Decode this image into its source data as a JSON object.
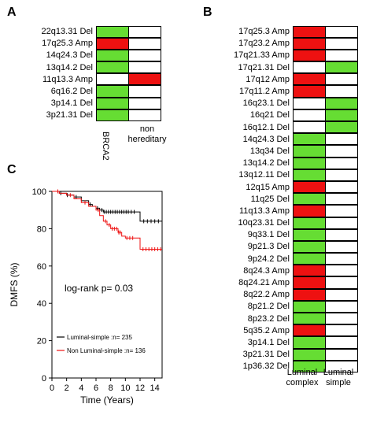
{
  "panels": {
    "a": "A",
    "b": "B",
    "c": "C"
  },
  "colors": {
    "green": "#66dd33",
    "red": "#ee1111",
    "white": "#ffffff",
    "black": "#000000",
    "red_line": "#ee1111"
  },
  "panel_a": {
    "columns": [
      "BRCA2",
      "non hereditary"
    ],
    "rows": [
      {
        "label": "22q13.31 Del",
        "cells": [
          "green",
          "white"
        ]
      },
      {
        "label": "17q25.3 Amp",
        "cells": [
          "red",
          "white"
        ]
      },
      {
        "label": "14q24.3 Del",
        "cells": [
          "green",
          "white"
        ]
      },
      {
        "label": "13q14.2 Del",
        "cells": [
          "green",
          "white"
        ]
      },
      {
        "label": "11q13.3 Amp",
        "cells": [
          "white",
          "red"
        ]
      },
      {
        "label": "6q16.2 Del",
        "cells": [
          "green",
          "white"
        ]
      },
      {
        "label": "3p14.1 Del",
        "cells": [
          "green",
          "white"
        ]
      },
      {
        "label": "3p21.31 Del",
        "cells": [
          "green",
          "white"
        ]
      }
    ]
  },
  "panel_b": {
    "columns": [
      "Luminal complex",
      "Luminal simple"
    ],
    "rows": [
      {
        "label": "17q25.3 Amp",
        "cells": [
          "red",
          "white"
        ]
      },
      {
        "label": "17q23.2 Amp",
        "cells": [
          "red",
          "white"
        ]
      },
      {
        "label": "17q21.33 Amp",
        "cells": [
          "red",
          "white"
        ]
      },
      {
        "label": "17q21.31 Del",
        "cells": [
          "white",
          "green"
        ]
      },
      {
        "label": "17q12 Amp",
        "cells": [
          "red",
          "white"
        ]
      },
      {
        "label": "17q11.2 Amp",
        "cells": [
          "red",
          "white"
        ]
      },
      {
        "label": "16q23.1 Del",
        "cells": [
          "white",
          "green"
        ]
      },
      {
        "label": "16q21 Del",
        "cells": [
          "white",
          "green"
        ]
      },
      {
        "label": "16q12.1 Del",
        "cells": [
          "white",
          "green"
        ]
      },
      {
        "label": "14q24.3 Del",
        "cells": [
          "green",
          "white"
        ]
      },
      {
        "label": "13q34 Del",
        "cells": [
          "green",
          "white"
        ]
      },
      {
        "label": "13q14.2 Del",
        "cells": [
          "green",
          "white"
        ]
      },
      {
        "label": "13q12.11 Del",
        "cells": [
          "green",
          "white"
        ]
      },
      {
        "label": "12q15 Amp",
        "cells": [
          "red",
          "white"
        ]
      },
      {
        "label": "11q25 Del",
        "cells": [
          "green",
          "white"
        ]
      },
      {
        "label": "11q13.3 Amp",
        "cells": [
          "red",
          "white"
        ]
      },
      {
        "label": "10q23.31 Del",
        "cells": [
          "green",
          "white"
        ]
      },
      {
        "label": "9q33.1 Del",
        "cells": [
          "green",
          "white"
        ]
      },
      {
        "label": "9p21.3 Del",
        "cells": [
          "green",
          "white"
        ]
      },
      {
        "label": "9p24.2 Del",
        "cells": [
          "green",
          "white"
        ]
      },
      {
        "label": "8q24.3 Amp",
        "cells": [
          "red",
          "white"
        ]
      },
      {
        "label": "8q24.21 Amp",
        "cells": [
          "red",
          "white"
        ]
      },
      {
        "label": "8q22.2 Amp",
        "cells": [
          "red",
          "white"
        ]
      },
      {
        "label": "8p21.2 Del",
        "cells": [
          "green",
          "white"
        ]
      },
      {
        "label": "8p23.2 Del",
        "cells": [
          "green",
          "white"
        ]
      },
      {
        "label": "5q35.2 Amp",
        "cells": [
          "red",
          "white"
        ]
      },
      {
        "label": "3p14.1 Del",
        "cells": [
          "green",
          "white"
        ]
      },
      {
        "label": "3p21.31 Del",
        "cells": [
          "green",
          "white"
        ]
      },
      {
        "label": "1p36.32 Del",
        "cells": [
          "green",
          "white"
        ]
      }
    ]
  },
  "chart_data": {
    "type": "line",
    "xlabel": "Time (Years)",
    "ylabel": "DMFS (%)",
    "xlim": [
      0,
      15
    ],
    "ylim": [
      0,
      100
    ],
    "xticks": [
      0,
      2,
      4,
      6,
      8,
      10,
      12,
      14
    ],
    "yticks": [
      0,
      20,
      40,
      60,
      80,
      100
    ],
    "annotation": "log-rank p= 0.03",
    "series": [
      {
        "name": "Luminal-simple :n= 235",
        "color": "#000000",
        "x": [
          0,
          1,
          2,
          3,
          4,
          5,
          5.5,
          6,
          6.5,
          7,
          11.5,
          12,
          15
        ],
        "y": [
          100,
          99,
          98,
          97,
          95,
          93,
          92,
          91,
          90,
          89,
          89,
          84,
          84
        ],
        "censor_x": [
          1.2,
          2.1,
          3.3,
          5.2,
          6.2,
          6.8,
          7.1,
          7.4,
          7.7,
          8.0,
          8.3,
          8.6,
          8.9,
          9.2,
          9.5,
          9.8,
          10.1,
          10.4,
          10.8,
          11.2,
          12.5,
          13,
          13.5,
          14,
          14.5
        ]
      },
      {
        "name": "Non Luminal-simple :n= 136",
        "color": "#ee1111",
        "x": [
          0,
          1,
          2,
          3,
          4,
          5,
          6,
          6.5,
          7,
          7.5,
          8,
          9,
          9.5,
          10,
          11.5,
          12,
          15
        ],
        "y": [
          100,
          99,
          98,
          96,
          94,
          92,
          90,
          87,
          84,
          82,
          80,
          78,
          76,
          75,
          75,
          69,
          69
        ],
        "censor_x": [
          0.8,
          2.5,
          4.5,
          6.3,
          7.3,
          7.8,
          8.2,
          8.5,
          8.8,
          9.1,
          9.3,
          10.2,
          10.6,
          11.0,
          12.4,
          12.8,
          13.2,
          13.6,
          14.0,
          14.4,
          14.8
        ]
      }
    ]
  }
}
